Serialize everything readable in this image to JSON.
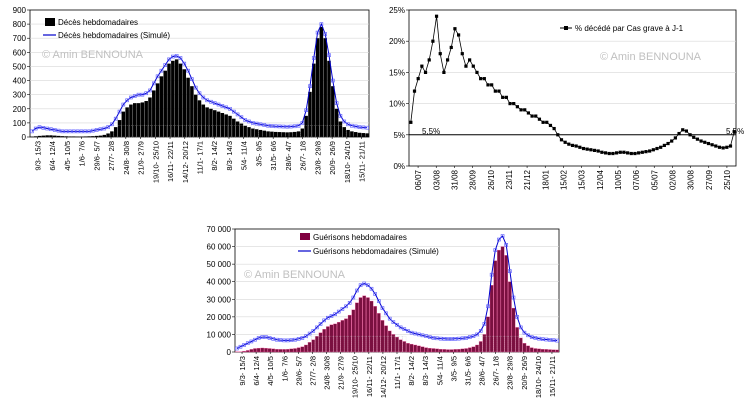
{
  "charts": [
    {
      "id": "deaths",
      "type": "bar+line",
      "watermark": "© Amin BENNOUNA",
      "legend": [
        "Décès hebdomadaires",
        "Décès hebdomadaires (Simulé)"
      ],
      "y_ticks": [
        "0",
        "100",
        "200",
        "300",
        "400",
        "500",
        "600",
        "700",
        "800",
        "900"
      ],
      "x_ticks": [
        "9/3- 15/3",
        "6/4- 12/4",
        "4/5- 10/5",
        "1/6- 7/6",
        "29/6- 5/7",
        "27/7- 2/8",
        "24/8- 30/8",
        "21/9- 27/9",
        "19/10- 25/10",
        "16/11- 22/11",
        "14/12- 20/12",
        "11/1- 17/1",
        "8/2- 14/2",
        "8/3- 14/3",
        "5/4- 11/4",
        "3/5- 9/5",
        "31/5- 6/6",
        "28/6- 4/7",
        "26/7- 1/8",
        "23/8- 29/8",
        "20/9- 26/9",
        "18/10- 24/10",
        "15/11- 21/11"
      ]
    },
    {
      "id": "ratio",
      "type": "line",
      "watermark": "© Amin BENNOUNA",
      "legend": [
        "% décédé par Cas grave à J-1"
      ],
      "y_ticks": [
        "0%",
        "5%",
        "10%",
        "15%",
        "20%",
        "25%"
      ],
      "x_ticks": [
        "06/07",
        "03/08",
        "31/08",
        "28/09",
        "26/10",
        "23/11",
        "21/12",
        "18/01",
        "15/02",
        "15/03",
        "12/04",
        "10/05",
        "07/06",
        "05/07",
        "02/08",
        "30/08",
        "27/09",
        "25/10"
      ],
      "annotations": [
        "5,5%",
        "5,5%"
      ]
    },
    {
      "id": "recoveries",
      "type": "bar+line",
      "watermark": "© Amin BENNOUNA",
      "legend": [
        "Guérisons hebdomadaires",
        "Guérisons hebdomadaires (Simulé)"
      ],
      "y_ticks": [
        "0",
        "10 000",
        "20 000",
        "30 000",
        "40 000",
        "50 000",
        "60 000",
        "70 000"
      ],
      "x_ticks": [
        "9/3- 15/3",
        "6/4- 12/4",
        "4/5- 10/5",
        "1/6- 7/6",
        "29/6- 5/7",
        "27/7- 2/8",
        "24/8- 30/8",
        "21/9- 27/9",
        "19/10- 25/10",
        "16/11- 22/11",
        "14/12- 20/12",
        "11/1- 17/1",
        "8/2- 14/2",
        "8/3- 14/3",
        "5/4- 11/4",
        "3/5- 9/5",
        "31/5- 6/6",
        "28/6- 4/7",
        "26/7- 1/8",
        "23/8- 29/8",
        "20/9- 26/9",
        "18/10- 24/10",
        "15/11- 21/11"
      ]
    }
  ],
  "chart_data": [
    {
      "type": "bar",
      "ylim": [
        0,
        900
      ],
      "x": [
        0,
        1,
        2,
        3,
        4,
        5,
        6,
        7,
        8,
        9,
        10,
        11,
        12,
        13,
        14,
        15,
        16,
        17,
        18,
        19,
        20,
        21,
        22,
        23,
        24,
        25,
        26,
        27,
        28,
        29,
        30,
        31,
        32,
        33,
        34,
        35,
        36,
        37,
        38,
        39,
        40,
        41,
        42,
        43,
        44,
        45,
        46,
        47,
        48,
        49,
        50,
        51,
        52,
        53,
        54,
        55,
        56,
        57,
        58,
        59,
        60,
        61,
        62,
        63,
        64,
        65,
        66,
        67,
        68,
        69,
        70,
        71,
        72,
        73,
        74,
        75,
        76,
        77,
        78,
        79,
        80,
        81,
        82,
        83,
        84,
        85,
        86,
        87,
        88
      ],
      "series": [
        {
          "name": "Décès hebdomadaires",
          "values": [
            2,
            5,
            8,
            10,
            12,
            12,
            10,
            8,
            6,
            5,
            4,
            4,
            3,
            3,
            4,
            5,
            6,
            8,
            10,
            15,
            25,
            40,
            70,
            120,
            180,
            210,
            230,
            240,
            240,
            245,
            255,
            280,
            330,
            380,
            430,
            470,
            520,
            540,
            550,
            520,
            480,
            420,
            360,
            300,
            260,
            230,
            210,
            200,
            190,
            180,
            170,
            160,
            150,
            130,
            110,
            95,
            80,
            70,
            60,
            55,
            50,
            45,
            40,
            38,
            36,
            35,
            34,
            33,
            34,
            36,
            40,
            60,
            150,
            320,
            520,
            700,
            780,
            700,
            540,
            360,
            200,
            110,
            70,
            50,
            40,
            35,
            30,
            28,
            26
          ]
        },
        {
          "name": "Décès hebdomadaires (Simulé)",
          "values": [
            40,
            60,
            70,
            65,
            60,
            55,
            50,
            45,
            40,
            40,
            40,
            40,
            40,
            40,
            40,
            40,
            45,
            50,
            55,
            60,
            70,
            90,
            130,
            180,
            230,
            260,
            280,
            290,
            300,
            300,
            310,
            330,
            380,
            430,
            470,
            510,
            550,
            570,
            575,
            560,
            520,
            470,
            410,
            350,
            310,
            280,
            260,
            250,
            240,
            230,
            220,
            210,
            200,
            180,
            160,
            140,
            120,
            110,
            100,
            95,
            90,
            85,
            80,
            78,
            76,
            75,
            74,
            73,
            74,
            76,
            80,
            100,
            190,
            360,
            560,
            740,
            800,
            730,
            580,
            400,
            240,
            150,
            110,
            90,
            80,
            75,
            70,
            68,
            66
          ]
        }
      ]
    },
    {
      "type": "scatter",
      "ylim": [
        0,
        25
      ],
      "series": [
        {
          "name": "% décédé par Cas grave à J-1",
          "values": [
            7,
            12,
            14,
            16,
            15,
            17,
            20,
            24,
            18,
            15,
            17,
            19,
            22,
            21,
            18,
            16,
            17,
            16,
            15,
            14,
            14,
            13,
            13,
            12,
            12,
            11,
            11,
            10,
            10,
            9.5,
            9,
            9,
            8.5,
            8,
            8,
            7.5,
            7,
            7,
            6.5,
            6,
            5,
            4.2,
            3.8,
            3.5,
            3.3,
            3.2,
            3.0,
            2.8,
            2.7,
            2.6,
            2.5,
            2.4,
            2.2,
            2.1,
            2.0,
            2.0,
            2.1,
            2.2,
            2.2,
            2.1,
            2.0,
            2.0,
            2.1,
            2.2,
            2.3,
            2.4,
            2.6,
            2.8,
            3.0,
            3.3,
            3.6,
            4.0,
            4.5,
            5.2,
            5.8,
            5.6,
            5.0,
            4.6,
            4.3,
            4.0,
            3.8,
            3.6,
            3.4,
            3.2,
            3.0,
            2.9,
            3.0,
            3.2,
            5.5
          ]
        }
      ]
    },
    {
      "type": "bar",
      "ylim": [
        0,
        70000
      ],
      "series": [
        {
          "name": "Guérisons hebdomadaires",
          "values": [
            100,
            200,
            500,
            900,
            1500,
            2000,
            2200,
            2300,
            2200,
            2000,
            1800,
            1600,
            1500,
            1500,
            1600,
            1800,
            2000,
            2500,
            3000,
            4000,
            5500,
            7000,
            9000,
            11000,
            13000,
            14500,
            15500,
            16000,
            17000,
            18000,
            19000,
            21000,
            24000,
            28000,
            31000,
            32000,
            31000,
            29000,
            26000,
            22000,
            18000,
            15000,
            12000,
            10000,
            8500,
            7000,
            6000,
            5000,
            4500,
            4000,
            3500,
            3000,
            2500,
            2200,
            2000,
            1800,
            1600,
            1500,
            1400,
            1400,
            1500,
            1600,
            1800,
            2000,
            2500,
            3000,
            4000,
            6000,
            10000,
            20000,
            38000,
            52000,
            58000,
            60000,
            55000,
            40000,
            25000,
            14000,
            8000,
            5000,
            3500,
            2500,
            2000,
            1800,
            1600,
            1500,
            1400,
            1300,
            1200
          ]
        },
        {
          "name": "Guérisons hebdomadaires (Simulé)",
          "values": [
            2000,
            3000,
            4000,
            5000,
            6000,
            7000,
            8000,
            8500,
            8500,
            8000,
            7500,
            7000,
            6800,
            6600,
            6600,
            6800,
            7000,
            7500,
            8000,
            9000,
            10500,
            12000,
            14000,
            16000,
            18000,
            19500,
            20500,
            21500,
            23000,
            24500,
            26000,
            28000,
            31000,
            35000,
            38000,
            39000,
            38000,
            36000,
            33000,
            29000,
            25000,
            22000,
            19000,
            17000,
            15500,
            14000,
            13000,
            12000,
            11000,
            10500,
            10000,
            9500,
            9000,
            8500,
            8000,
            7800,
            7600,
            7500,
            7400,
            7400,
            7500,
            7600,
            7800,
            8000,
            8500,
            9000,
            10000,
            12000,
            16000,
            26000,
            44000,
            58000,
            64000,
            66000,
            61000,
            46000,
            31000,
            20000,
            14000,
            11000,
            9500,
            8500,
            8000,
            7600,
            7300,
            7100,
            6900,
            6700,
            6500
          ]
        }
      ]
    }
  ]
}
